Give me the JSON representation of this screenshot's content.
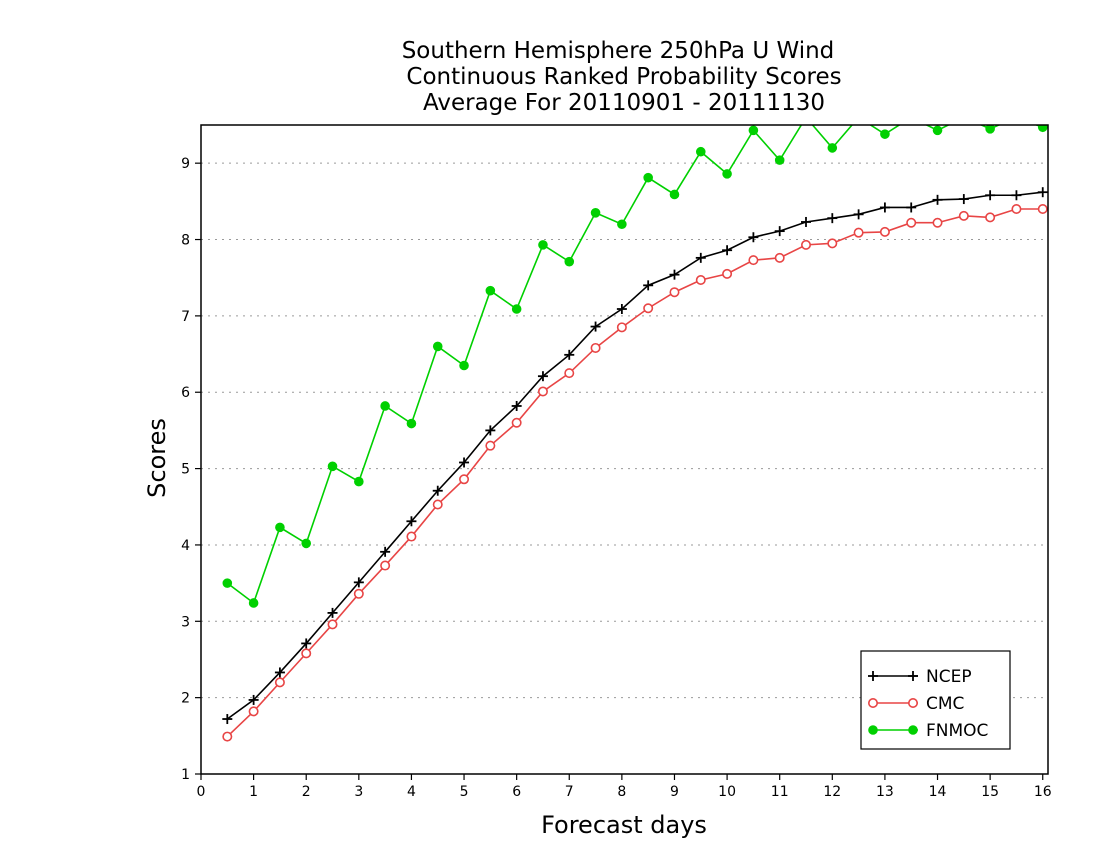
{
  "chart_data": {
    "type": "line",
    "title": [
      "Southern Hemisphere 250hPa U Wind",
      "Continuous Ranked Probability Scores",
      "Average For 20110901 - 20111130"
    ],
    "xlabel": "Forecast days",
    "ylabel": "Scores",
    "xlim": [
      0,
      16.1
    ],
    "ylim": [
      1,
      9.5
    ],
    "xticks": [
      "0",
      "1",
      "2",
      "3",
      "4",
      "5",
      "6",
      "7",
      "8",
      "9",
      "10",
      "11",
      "12",
      "13",
      "14",
      "15",
      "16"
    ],
    "yticks": [
      "1",
      "2",
      "3",
      "4",
      "5",
      "6",
      "7",
      "8",
      "9"
    ],
    "grid": "horizontal dotted",
    "legend_position": "bottom-right",
    "x": [
      0.5,
      1,
      1.5,
      2,
      2.5,
      3,
      3.5,
      4,
      4.5,
      5,
      5.5,
      6,
      6.5,
      7,
      7.5,
      8,
      8.5,
      9,
      9.5,
      10,
      10.5,
      11,
      11.5,
      12,
      12.5,
      13,
      13.5,
      14,
      14.5,
      15,
      15.5,
      16
    ],
    "series": [
      {
        "name": "NCEP",
        "color": "#000000",
        "marker": "plus",
        "values": [
          1.72,
          1.97,
          2.33,
          2.71,
          3.11,
          3.51,
          3.91,
          4.31,
          4.71,
          5.08,
          5.5,
          5.82,
          6.21,
          6.49,
          6.86,
          7.09,
          7.4,
          7.54,
          7.76,
          7.86,
          8.03,
          8.11,
          8.23,
          8.28,
          8.33,
          8.42,
          8.42,
          8.52,
          8.53,
          8.58,
          8.58,
          8.62
        ]
      },
      {
        "name": "CMC",
        "color": "#e84545",
        "marker": "open-circle",
        "values": [
          1.49,
          1.82,
          2.2,
          2.58,
          2.96,
          3.36,
          3.73,
          4.11,
          4.53,
          4.86,
          5.3,
          5.6,
          6.01,
          6.25,
          6.58,
          6.85,
          7.1,
          7.31,
          7.47,
          7.55,
          7.73,
          7.76,
          7.93,
          7.95,
          8.09,
          8.1,
          8.22,
          8.22,
          8.31,
          8.29,
          8.4,
          8.4
        ]
      },
      {
        "name": "FNMOC",
        "color": "#00d000",
        "marker": "filled-circle",
        "values": [
          3.5,
          3.24,
          4.23,
          4.02,
          5.03,
          4.83,
          5.82,
          5.59,
          6.6,
          6.35,
          7.33,
          7.09,
          7.93,
          7.71,
          8.35,
          8.2,
          8.81,
          8.59,
          9.15,
          8.86,
          9.43,
          9.04,
          9.6,
          9.2,
          9.6,
          9.38,
          9.6,
          9.43,
          9.6,
          9.45,
          9.6,
          9.47
        ]
      }
    ]
  }
}
